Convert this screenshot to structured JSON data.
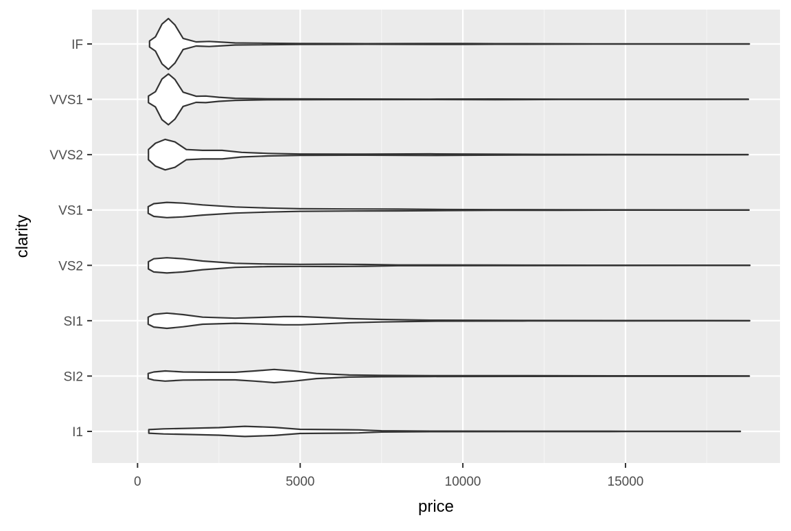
{
  "chart_data": {
    "type": "violin",
    "orientation": "horizontal",
    "title": "",
    "xlabel": "price",
    "ylabel": "clarity",
    "xlim": [
      -1400,
      19750
    ],
    "x_ticks": [
      0,
      5000,
      10000,
      15000
    ],
    "x_tick_labels": [
      "0",
      "5000",
      "10000",
      "15000"
    ],
    "categories": [
      "IF",
      "VVS1",
      "VVS2",
      "VS1",
      "VS2",
      "SI1",
      "SI2",
      "I1"
    ],
    "grid": true,
    "legend": "none",
    "colors": {
      "panel": "#ebebeb",
      "grid_major": "#ffffff",
      "grid_minor": "#f5f5f5",
      "violin_fill": "#ffffff",
      "violin_stroke": "#333333",
      "tick_text": "#4d4d4d",
      "title_text": "#000000"
    },
    "series": [
      {
        "category": "IF",
        "min": 369,
        "max": 18806,
        "profile": [
          [
            369,
            0.12
          ],
          [
            550,
            0.28
          ],
          [
            750,
            0.78
          ],
          [
            950,
            1.0
          ],
          [
            1150,
            0.75
          ],
          [
            1400,
            0.22
          ],
          [
            1800,
            0.08
          ],
          [
            2200,
            0.1
          ],
          [
            2600,
            0.07
          ],
          [
            3000,
            0.04
          ],
          [
            3500,
            0.035
          ],
          [
            5000,
            0.02
          ],
          [
            7000,
            0.012
          ],
          [
            9000,
            0.02
          ],
          [
            10000,
            0.018
          ],
          [
            11000,
            0.012
          ],
          [
            14000,
            0.006
          ],
          [
            18806,
            0.004
          ]
        ]
      },
      {
        "category": "VVS1",
        "min": 336,
        "max": 18777,
        "profile": [
          [
            336,
            0.13
          ],
          [
            550,
            0.3
          ],
          [
            750,
            0.8
          ],
          [
            950,
            1.0
          ],
          [
            1150,
            0.78
          ],
          [
            1400,
            0.28
          ],
          [
            1800,
            0.12
          ],
          [
            2100,
            0.13
          ],
          [
            2500,
            0.08
          ],
          [
            3000,
            0.04
          ],
          [
            4000,
            0.02
          ],
          [
            6000,
            0.012
          ],
          [
            9000,
            0.008
          ],
          [
            11000,
            0.014
          ],
          [
            13000,
            0.006
          ],
          [
            18777,
            0.004
          ]
        ]
      },
      {
        "category": "VVS2",
        "min": 336,
        "max": 18768,
        "profile": [
          [
            336,
            0.2
          ],
          [
            550,
            0.45
          ],
          [
            850,
            0.6
          ],
          [
            1150,
            0.5
          ],
          [
            1500,
            0.2
          ],
          [
            2000,
            0.17
          ],
          [
            2600,
            0.17
          ],
          [
            3200,
            0.09
          ],
          [
            4000,
            0.05
          ],
          [
            5000,
            0.025
          ],
          [
            7000,
            0.02
          ],
          [
            9000,
            0.03
          ],
          [
            10500,
            0.02
          ],
          [
            12500,
            0.012
          ],
          [
            15000,
            0.006
          ],
          [
            18768,
            0.004
          ]
        ]
      },
      {
        "category": "VS1",
        "min": 327,
        "max": 18795,
        "profile": [
          [
            327,
            0.13
          ],
          [
            500,
            0.25
          ],
          [
            900,
            0.3
          ],
          [
            1400,
            0.27
          ],
          [
            2000,
            0.2
          ],
          [
            3000,
            0.12
          ],
          [
            4000,
            0.08
          ],
          [
            5000,
            0.05
          ],
          [
            6500,
            0.04
          ],
          [
            8000,
            0.035
          ],
          [
            9500,
            0.02
          ],
          [
            11000,
            0.014
          ],
          [
            13000,
            0.01
          ],
          [
            15000,
            0.006
          ],
          [
            18795,
            0.004
          ]
        ]
      },
      {
        "category": "VS2",
        "min": 334,
        "max": 18823,
        "profile": [
          [
            334,
            0.14
          ],
          [
            500,
            0.26
          ],
          [
            900,
            0.3
          ],
          [
            1400,
            0.26
          ],
          [
            2000,
            0.17
          ],
          [
            3000,
            0.08
          ],
          [
            4000,
            0.05
          ],
          [
            5000,
            0.04
          ],
          [
            6000,
            0.045
          ],
          [
            7000,
            0.035
          ],
          [
            8000,
            0.015
          ],
          [
            11000,
            0.01
          ],
          [
            14000,
            0.006
          ],
          [
            18823,
            0.004
          ]
        ]
      },
      {
        "category": "SI1",
        "min": 326,
        "max": 18818,
        "profile": [
          [
            326,
            0.14
          ],
          [
            500,
            0.25
          ],
          [
            900,
            0.3
          ],
          [
            1400,
            0.24
          ],
          [
            2000,
            0.14
          ],
          [
            3000,
            0.1
          ],
          [
            3800,
            0.13
          ],
          [
            4500,
            0.16
          ],
          [
            5000,
            0.16
          ],
          [
            5600,
            0.13
          ],
          [
            6500,
            0.08
          ],
          [
            7500,
            0.05
          ],
          [
            9000,
            0.02
          ],
          [
            12000,
            0.01
          ],
          [
            15000,
            0.006
          ],
          [
            18818,
            0.004
          ]
        ]
      },
      {
        "category": "SI2",
        "min": 326,
        "max": 18804,
        "profile": [
          [
            326,
            0.1
          ],
          [
            500,
            0.16
          ],
          [
            850,
            0.2
          ],
          [
            1400,
            0.16
          ],
          [
            2200,
            0.15
          ],
          [
            3000,
            0.15
          ],
          [
            3600,
            0.2
          ],
          [
            4200,
            0.26
          ],
          [
            4800,
            0.2
          ],
          [
            5500,
            0.1
          ],
          [
            6500,
            0.04
          ],
          [
            7500,
            0.025
          ],
          [
            9000,
            0.018
          ],
          [
            12000,
            0.014
          ],
          [
            15000,
            0.01
          ],
          [
            18804,
            0.006
          ]
        ]
      },
      {
        "category": "I1",
        "min": 345,
        "max": 18531,
        "profile": [
          [
            345,
            0.07
          ],
          [
            800,
            0.1
          ],
          [
            1500,
            0.12
          ],
          [
            2500,
            0.15
          ],
          [
            3300,
            0.2
          ],
          [
            4200,
            0.16
          ],
          [
            5000,
            0.08
          ],
          [
            6000,
            0.07
          ],
          [
            6800,
            0.06
          ],
          [
            7500,
            0.025
          ],
          [
            9000,
            0.012
          ],
          [
            12000,
            0.007
          ],
          [
            15000,
            0.005
          ],
          [
            18531,
            0.004
          ]
        ]
      }
    ]
  }
}
